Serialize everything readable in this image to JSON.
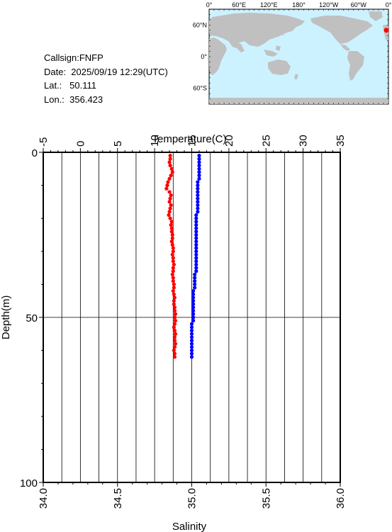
{
  "info": {
    "callsign": "Callsign:FNFP",
    "date": "Date:  2025/09/19 12:29(UTC)",
    "lat": "Lat.:   50.111",
    "lon": "Lon.:  356.423"
  },
  "map": {
    "lon_labels": [
      "0°",
      "60°E",
      "120°E",
      "180°",
      "120°W",
      "60°W",
      "0°"
    ],
    "lat_labels": [
      "60°N",
      "0°",
      "60°S"
    ],
    "station": {
      "lat": 50.111,
      "lon": 356.423
    },
    "ocean_color": "#ccf2ff",
    "land_color": "#c0c0c0",
    "marker_color": "#ff0000"
  },
  "chart_data": {
    "type": "scatter",
    "ylabel": "Depth(m)",
    "ylim": [
      0,
      100
    ],
    "y_inverted": true,
    "y_ticks": [
      0,
      50,
      100
    ],
    "top_axis": {
      "label": "Temperature(C)",
      "range": [
        -5,
        35
      ],
      "ticks": [
        -5,
        0,
        5,
        10,
        15,
        20,
        25,
        30,
        35
      ]
    },
    "bottom_axis": {
      "label": "Salinity",
      "range": [
        34.0,
        36.0
      ],
      "ticks": [
        "34.0",
        "34.5",
        "35.0",
        "35.5",
        "36.0"
      ]
    },
    "grid": "vertical-every-2.5C-plus-depth-50",
    "series": [
      {
        "axis": "temperature",
        "color": "#ff0000",
        "points": [
          [
            12.1,
            1
          ],
          [
            12.1,
            2
          ],
          [
            12.0,
            3
          ],
          [
            12.1,
            4
          ],
          [
            12.3,
            5
          ],
          [
            12.4,
            6
          ],
          [
            12.2,
            7
          ],
          [
            12.0,
            8
          ],
          [
            11.8,
            9
          ],
          [
            11.7,
            10
          ],
          [
            11.6,
            11
          ],
          [
            12.0,
            12
          ],
          [
            12.2,
            13
          ],
          [
            12.1,
            14
          ],
          [
            12.0,
            15
          ],
          [
            12.2,
            16
          ],
          [
            12.1,
            17
          ],
          [
            12.0,
            18
          ],
          [
            11.9,
            19
          ],
          [
            12.1,
            20
          ],
          [
            12.3,
            21
          ],
          [
            12.2,
            22
          ],
          [
            12.3,
            23
          ],
          [
            12.3,
            24
          ],
          [
            12.4,
            25
          ],
          [
            12.4,
            26
          ],
          [
            12.3,
            27
          ],
          [
            12.4,
            28
          ],
          [
            12.5,
            29
          ],
          [
            12.5,
            30
          ],
          [
            12.4,
            31
          ],
          [
            12.5,
            32
          ],
          [
            12.5,
            33
          ],
          [
            12.6,
            34
          ],
          [
            12.5,
            35
          ],
          [
            12.5,
            36
          ],
          [
            12.4,
            37
          ],
          [
            12.5,
            38
          ],
          [
            12.5,
            39
          ],
          [
            12.6,
            40
          ],
          [
            12.6,
            41
          ],
          [
            12.5,
            42
          ],
          [
            12.6,
            43
          ],
          [
            12.7,
            44
          ],
          [
            12.6,
            45
          ],
          [
            12.6,
            46
          ],
          [
            12.7,
            47
          ],
          [
            12.7,
            48
          ],
          [
            12.8,
            49
          ],
          [
            12.7,
            50
          ],
          [
            12.8,
            51
          ],
          [
            12.7,
            52
          ],
          [
            12.6,
            53
          ],
          [
            12.7,
            54
          ],
          [
            12.8,
            55
          ],
          [
            12.7,
            56
          ],
          [
            12.7,
            57
          ],
          [
            12.8,
            58
          ],
          [
            12.7,
            59
          ],
          [
            12.6,
            60
          ],
          [
            12.7,
            61
          ],
          [
            12.7,
            62
          ]
        ]
      },
      {
        "axis": "salinity",
        "color": "#0000ff",
        "points": [
          [
            35.05,
            1
          ],
          [
            35.05,
            2
          ],
          [
            35.05,
            3
          ],
          [
            35.05,
            4
          ],
          [
            35.05,
            5
          ],
          [
            35.05,
            6
          ],
          [
            35.05,
            7
          ],
          [
            35.05,
            8
          ],
          [
            35.04,
            9
          ],
          [
            35.04,
            10
          ],
          [
            35.04,
            11
          ],
          [
            35.04,
            12
          ],
          [
            35.04,
            13
          ],
          [
            35.04,
            14
          ],
          [
            35.04,
            15
          ],
          [
            35.04,
            16
          ],
          [
            35.04,
            17
          ],
          [
            35.04,
            18
          ],
          [
            35.03,
            19
          ],
          [
            35.03,
            20
          ],
          [
            35.03,
            21
          ],
          [
            35.03,
            22
          ],
          [
            35.03,
            23
          ],
          [
            35.03,
            24
          ],
          [
            35.03,
            25
          ],
          [
            35.03,
            26
          ],
          [
            35.03,
            27
          ],
          [
            35.03,
            28
          ],
          [
            35.03,
            29
          ],
          [
            35.03,
            30
          ],
          [
            35.03,
            31
          ],
          [
            35.03,
            32
          ],
          [
            35.03,
            33
          ],
          [
            35.03,
            34
          ],
          [
            35.03,
            35
          ],
          [
            35.03,
            36
          ],
          [
            35.02,
            37
          ],
          [
            35.02,
            38
          ],
          [
            35.02,
            39
          ],
          [
            35.02,
            40
          ],
          [
            35.02,
            41
          ],
          [
            35.01,
            42
          ],
          [
            35.01,
            43
          ],
          [
            35.01,
            44
          ],
          [
            35.01,
            45
          ],
          [
            35.01,
            46
          ],
          [
            35.01,
            47
          ],
          [
            35.01,
            48
          ],
          [
            35.01,
            49
          ],
          [
            35.01,
            50
          ],
          [
            35.01,
            51
          ],
          [
            35.0,
            52
          ],
          [
            35.0,
            53
          ],
          [
            35.0,
            54
          ],
          [
            35.0,
            55
          ],
          [
            35.0,
            56
          ],
          [
            35.0,
            57
          ],
          [
            35.0,
            58
          ],
          [
            35.0,
            59
          ],
          [
            35.0,
            60
          ],
          [
            35.0,
            61
          ],
          [
            35.0,
            62
          ]
        ]
      }
    ]
  }
}
